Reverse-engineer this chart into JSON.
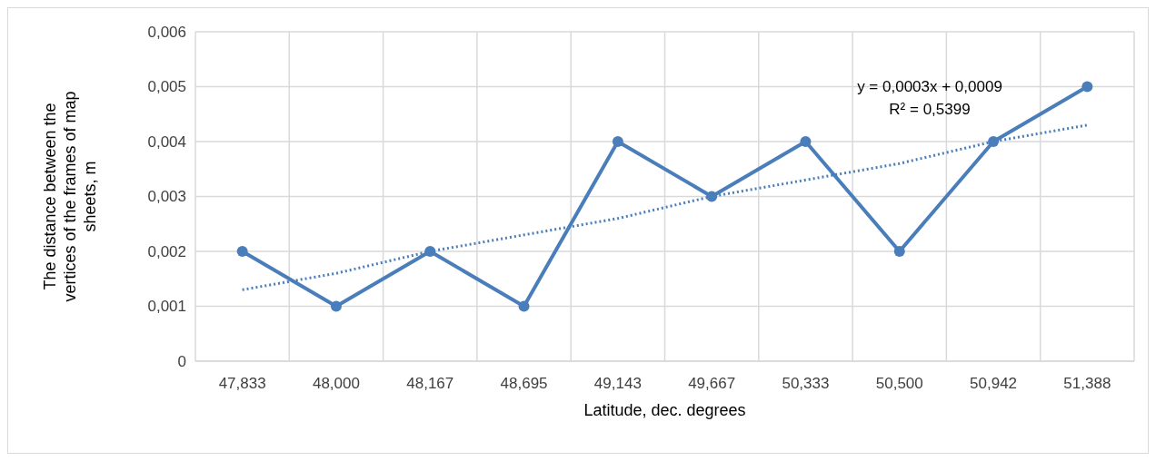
{
  "chart_data": {
    "type": "line",
    "xlabel": "Latitude, dec. degrees",
    "ylabel": "The distance between the vertices of the frames of map sheets, m",
    "categories": [
      "47,833",
      "48,000",
      "48,167",
      "48,695",
      "49,143",
      "49,667",
      "50,333",
      "50,500",
      "50,942",
      "51,388"
    ],
    "series": [
      {
        "type": "line",
        "color": "#4a7ebb",
        "marker": "circle",
        "line_style": "solid",
        "values": [
          0.002,
          0.001,
          0.002,
          0.001,
          0.004,
          0.003,
          0.004,
          0.002,
          0.004,
          0.005
        ]
      },
      {
        "type": "line",
        "color": "#4a7ebb",
        "marker": "none",
        "line_style": "dotted",
        "values": [
          0.0013,
          0.0016,
          0.002,
          0.0023,
          0.0026,
          0.003,
          0.0033,
          0.0036,
          0.004,
          0.0043
        ]
      }
    ],
    "ylim": [
      0,
      0.006
    ],
    "yticks": [
      {
        "value": 0,
        "label": "0"
      },
      {
        "value": 0.001,
        "label": "0,001"
      },
      {
        "value": 0.002,
        "label": "0,002"
      },
      {
        "value": 0.003,
        "label": "0,003"
      },
      {
        "value": 0.004,
        "label": "0,004"
      },
      {
        "value": 0.005,
        "label": "0,005"
      },
      {
        "value": 0.006,
        "label": "0,006"
      }
    ],
    "grid": true,
    "annotations": [
      "y = 0,0003x + 0,0009",
      "R² = 0,5399"
    ]
  }
}
